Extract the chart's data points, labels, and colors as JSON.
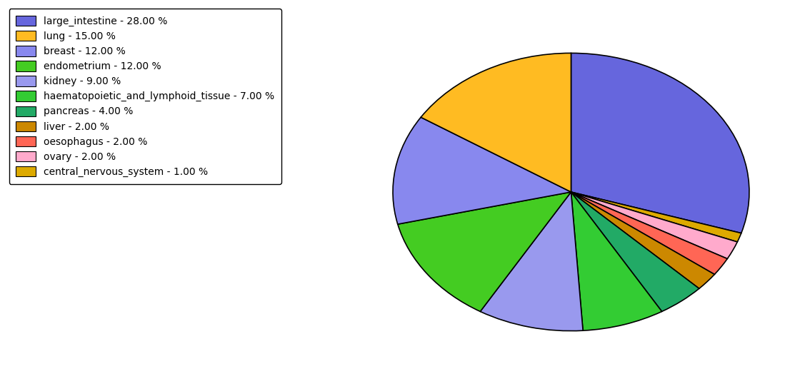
{
  "labels": [
    "large_intestine",
    "lung",
    "breast",
    "endometrium",
    "kidney",
    "haematopoietic_and_lymphoid_tissue",
    "pancreas",
    "liver",
    "oesophagus",
    "ovary",
    "central_nervous_system"
  ],
  "values": [
    28,
    15,
    12,
    12,
    9,
    7,
    4,
    2,
    2,
    2,
    1
  ],
  "colors": [
    "#6666dd",
    "#ffbb22",
    "#8888ee",
    "#44cc22",
    "#9999ee",
    "#33cc33",
    "#22aa66",
    "#cc8800",
    "#ff6655",
    "#ffaacc",
    "#ddaa00"
  ],
  "legend_labels": [
    "large_intestine - 28.00 %",
    "lung - 15.00 %",
    "breast - 12.00 %",
    "endometrium - 12.00 %",
    "kidney - 9.00 %",
    "haematopoietic_and_lymphoid_tissue - 7.00 %",
    "pancreas - 4.00 %",
    "liver - 2.00 %",
    "oesophagus - 2.00 %",
    "ovary - 2.00 %",
    "central_nervous_system - 1.00 %"
  ],
  "figsize": [
    11.34,
    5.38
  ],
  "dpi": 100
}
